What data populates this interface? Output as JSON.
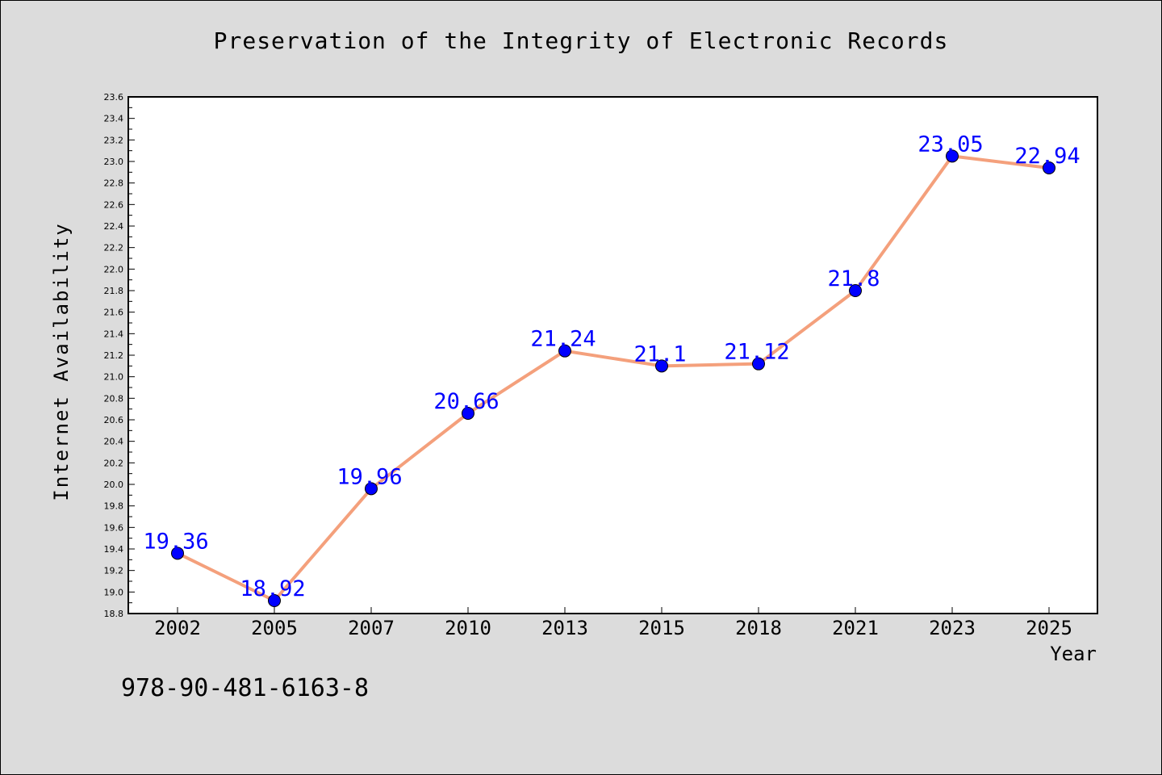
{
  "chart_data": {
    "type": "line",
    "title": "Preservation of the Integrity of Electronic Records",
    "xlabel": "Year",
    "ylabel": "Internet Availability",
    "categories": [
      "2002",
      "2005",
      "2007",
      "2010",
      "2013",
      "2015",
      "2018",
      "2021",
      "2023",
      "2025"
    ],
    "series": [
      {
        "values": [
          19.36,
          18.92,
          19.96,
          20.66,
          21.24,
          21.1,
          21.12,
          21.8,
          23.05,
          22.94
        ],
        "data_labels": [
          "19.36",
          "18.92",
          "19.96",
          "20.66",
          "21.24",
          "21.1",
          "21.12",
          "21.8",
          "23.05",
          "22.94"
        ],
        "line_color": "#f4a07c",
        "marker_color": "#0000ff",
        "label_color": "#0000ff"
      }
    ],
    "ylim": [
      18.8,
      23.6
    ],
    "y_ticks": [
      "18.8",
      "19.0",
      "19.2",
      "19.4",
      "19.6",
      "19.8",
      "20.0",
      "20.2",
      "20.4",
      "20.6",
      "20.8",
      "21.0",
      "21.2",
      "21.4",
      "21.6",
      "21.8",
      "22.0",
      "22.2",
      "22.4",
      "22.6",
      "22.8",
      "23.0",
      "23.2",
      "23.4",
      "23.6"
    ],
    "grid": false,
    "legend": "none"
  },
  "footer_text": "978-90-481-6163-8"
}
